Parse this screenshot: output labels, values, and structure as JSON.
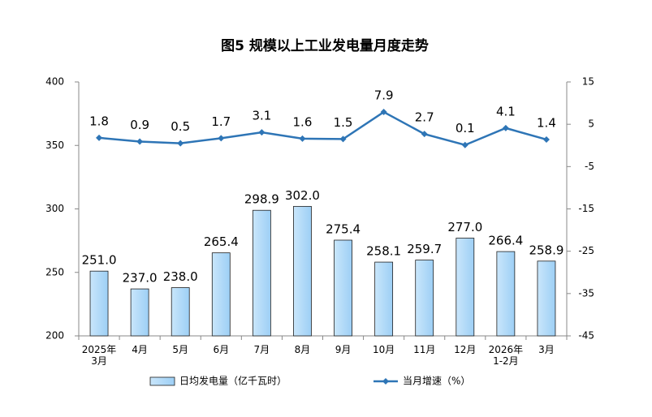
{
  "chart_data": {
    "type": "bar-line",
    "title": "图5 规模以上工业发电量月度走势",
    "categories": [
      "2025年\n3月",
      "4月",
      "5月",
      "6月",
      "7月",
      "8月",
      "9月",
      "10月",
      "11月",
      "12月",
      "2026年\n1-2月",
      "3月"
    ],
    "series": [
      {
        "name": "日均发电量（亿千瓦时）",
        "type": "bar",
        "color": "#9dcff5",
        "values": [
          251.0,
          237.0,
          238.0,
          265.4,
          298.9,
          302.0,
          275.4,
          258.1,
          259.7,
          277.0,
          266.4,
          258.9
        ],
        "value_labels": [
          "251.0",
          "237.0",
          "238.0",
          "265.4",
          "298.9",
          "302.0",
          "275.4",
          "258.1",
          "259.7",
          "277.0",
          "266.4",
          "258.9"
        ]
      },
      {
        "name": "当月增速（%）",
        "type": "line",
        "axis": "y2",
        "color": "#2e75b6",
        "values": [
          1.8,
          0.9,
          0.5,
          1.7,
          3.1,
          1.6,
          1.5,
          7.9,
          2.7,
          0.1,
          4.1,
          1.4
        ]
      }
    ],
    "ylim": [
      200,
      400
    ],
    "yticks": [
      200,
      250,
      300,
      350,
      400
    ],
    "y2lim": [
      -45,
      15
    ],
    "y2ticks": [
      -45,
      -35,
      -25,
      -15,
      -5,
      5,
      15
    ],
    "legend": "bottom"
  }
}
